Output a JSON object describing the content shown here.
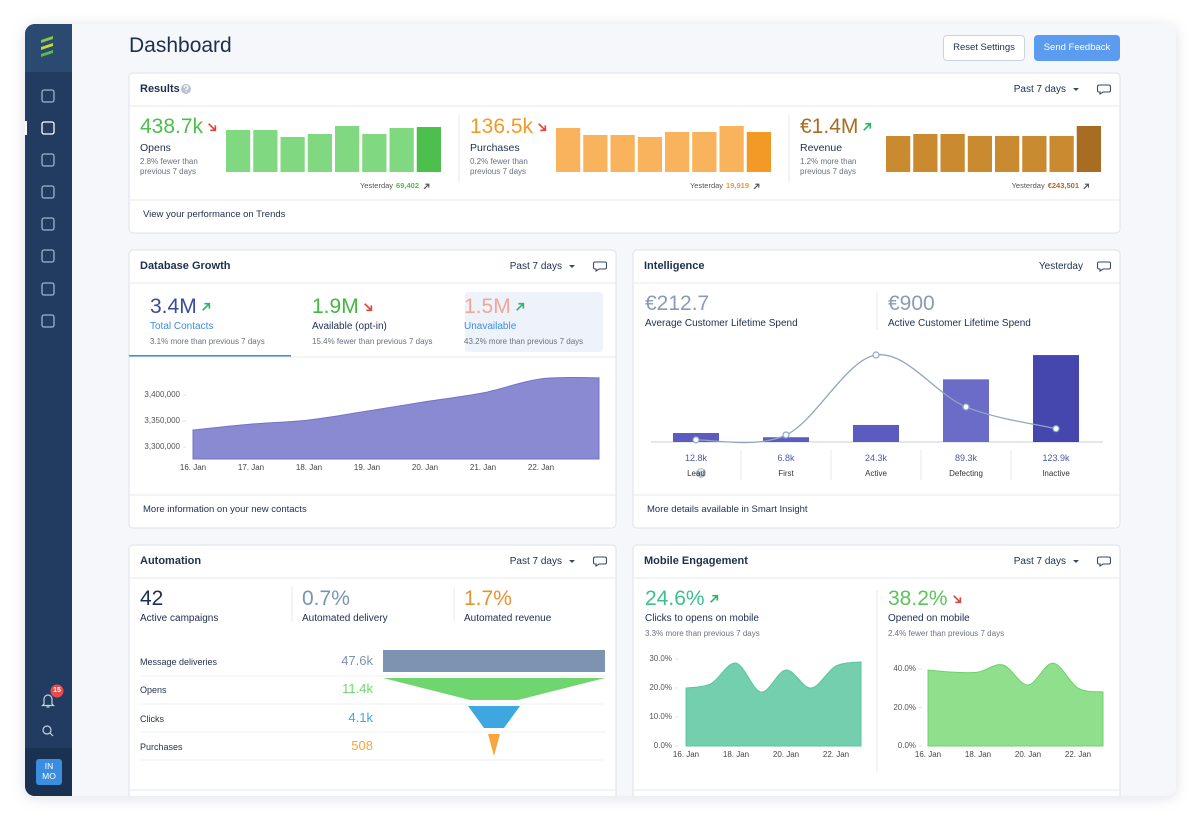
{
  "sidebar": {
    "notifications": "15",
    "user": [
      "IN",
      "MO"
    ]
  },
  "header": {
    "title": "Dashboard",
    "reset": "Reset Settings",
    "feedback": "Send Feedback"
  },
  "results": {
    "title": "Results",
    "period": "Past 7 days",
    "footer": "View your performance on Trends",
    "metrics": [
      {
        "value": "438.7k",
        "direction": "down",
        "label": "Opens",
        "note": "2.8% fewer than previous 7 days",
        "yesterday_label": "Yesterday",
        "yesterday": "69,402",
        "color": "#80d880",
        "accent": "#4cbf4c",
        "bars": [
          42,
          42,
          35,
          38,
          46,
          38,
          44,
          45
        ]
      },
      {
        "value": "136.5k",
        "direction": "down",
        "label": "Purchases",
        "note": "0.2% fewer than previous 7 days",
        "yesterday_label": "Yesterday",
        "yesterday": "19,919",
        "color": "#f8b35c",
        "accent": "#f39a26",
        "bars": [
          44,
          37,
          37,
          35,
          40,
          40,
          46,
          40
        ]
      },
      {
        "value": "€1.4M",
        "direction": "up",
        "label": "Revenue",
        "note": "1.2% more than previous 7 days",
        "yesterday_label": "Yesterday",
        "yesterday": "€243,501",
        "color": "#c98a30",
        "accent": "#a86d22",
        "bars": [
          36,
          38,
          38,
          36,
          36,
          36,
          36,
          46
        ]
      }
    ]
  },
  "database": {
    "title": "Database Growth",
    "period": "Past 7 days",
    "footer": "More information on your new contacts",
    "tabs": [
      {
        "value": "3.4M",
        "direction": "up",
        "label": "Total Contacts",
        "note": "3.1% more than previous 7 days",
        "color": "#3b4a9c",
        "selected": true
      },
      {
        "value": "1.9M",
        "direction": "down",
        "label": "Available (opt-in)",
        "note": "15.4% fewer than previous 7 days",
        "color": "#45b545"
      },
      {
        "value": "1.5M",
        "direction": "up",
        "label": "Unavailable",
        "note": "43.2% more than previous 7 days",
        "color": "#f4a596",
        "highlighted": true
      }
    ],
    "chart": {
      "type": "area",
      "color": "#8a8ad2",
      "categories": [
        "16. Jan",
        "17. Jan",
        "18. Jan",
        "19. Jan",
        "20. Jan",
        "21. Jan",
        "22. Jan",
        null
      ],
      "values": [
        3332700,
        3344000,
        3352000,
        3369000,
        3387000,
        3404000,
        3431000,
        3433000
      ],
      "ylim": [
        3277000,
        3448000
      ],
      "yticks": [
        {
          "value": 3300000,
          "label": "3,300,000"
        },
        {
          "value": 3350000,
          "label": "3,350,000"
        },
        {
          "value": 3400000,
          "label": "3,400,000"
        }
      ]
    }
  },
  "intelligence": {
    "title": "Intelligence",
    "period": "Yesterday",
    "footer": "More details available in Smart Insight",
    "kpis": [
      {
        "value": "€212.7",
        "label": "Average Customer Lifetime Spend"
      },
      {
        "value": "€900",
        "label": "Active Customer Lifetime Spend"
      }
    ],
    "chart": {
      "type": "bar",
      "categories": [
        "Lead",
        "First",
        "Active",
        "Defecting",
        "Inactive"
      ],
      "values": [
        12800,
        6800,
        24300,
        89300,
        123900
      ],
      "value_labels": [
        "12.8k",
        "6.8k",
        "24.3k",
        "89.3k",
        "123.9k"
      ],
      "colors": [
        "#5c5cc0",
        "#5c5cc0",
        "#5c5cc0",
        "#6b6bc8",
        "#4646af"
      ],
      "trend": [
        3000,
        10000,
        124000,
        50000,
        19000
      ],
      "trend_color": "#90a6bf"
    }
  },
  "automation": {
    "title": "Automation",
    "period": "Past 7 days",
    "kpis": [
      {
        "value": "42",
        "label": "Active campaigns",
        "color": "#1e2f4d"
      },
      {
        "value": "0.7%",
        "label": "Automated delivery",
        "color": "#7a93b5"
      },
      {
        "value": "1.7%",
        "label": "Automated revenue",
        "color": "#e8922c"
      }
    ],
    "funnel": {
      "labels": [
        "Message deliveries",
        "Opens",
        "Clicks",
        "Purchases"
      ],
      "values": [
        47600,
        11400,
        4100,
        508
      ],
      "value_labels": [
        "47.6k",
        "11.4k",
        "4.1k",
        "508"
      ],
      "colors": [
        "#7d93b2",
        "#6fd66f",
        "#3fa7e0",
        "#f6a63c"
      ]
    }
  },
  "mobile": {
    "title": "Mobile Engagement",
    "period": "Past 7 days",
    "kpis": [
      {
        "value": "24.6%",
        "direction": "up",
        "label": "Clicks to opens on mobile",
        "note": "3.3% more than previous 7 days",
        "color": "#3fbf8f",
        "chart": {
          "type": "area",
          "color": "#74cfae",
          "categories": [
            "16. Jan",
            null,
            "18. Jan",
            null,
            "20. Jan",
            null,
            "22. Jan",
            null
          ],
          "values": [
            20.0,
            21.5,
            28.6,
            18.6,
            26.2,
            20.0,
            27.6,
            29.0
          ],
          "ylim": [
            0,
            33
          ],
          "yticks": [
            {
              "value": 0,
              "label": "0.0%"
            },
            {
              "value": 10,
              "label": "10.0%"
            },
            {
              "value": 20,
              "label": "20.0%"
            },
            {
              "value": 30,
              "label": "30.0%"
            }
          ]
        }
      },
      {
        "value": "38.2%",
        "direction": "down",
        "label": "Opened on mobile",
        "note": "2.4% fewer than previous 7 days",
        "color": "#5bc45b",
        "chart": {
          "type": "area",
          "color": "#90df8d",
          "categories": [
            "16. Jan",
            null,
            "18. Jan",
            null,
            "20. Jan",
            null,
            "22. Jan",
            null
          ],
          "values": [
            39.5,
            38.4,
            38.4,
            42.1,
            31.7,
            43.1,
            30.1,
            28.1
          ],
          "ylim": [
            0,
            46
          ],
          "yticks": [
            {
              "value": 0,
              "label": "0.0%"
            },
            {
              "value": 20,
              "label": "20.0%"
            },
            {
              "value": 40,
              "label": "40.0%"
            }
          ]
        }
      }
    ]
  }
}
